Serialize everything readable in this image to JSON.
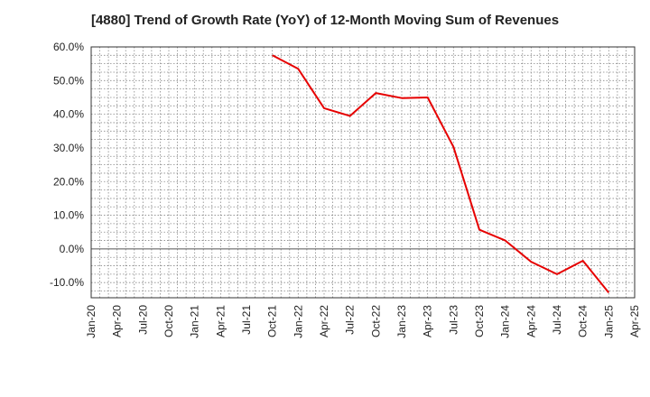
{
  "chart_data": {
    "type": "line",
    "title": "[4880]  Trend of Growth Rate (YoY) of 12-Month Moving Sum of Revenues",
    "xlabel": "",
    "ylabel": "",
    "x_ticks": [
      "Jan-20",
      "Apr-20",
      "Jul-20",
      "Oct-20",
      "Jan-21",
      "Apr-21",
      "Jul-21",
      "Oct-21",
      "Jan-22",
      "Apr-22",
      "Jul-22",
      "Oct-22",
      "Jan-23",
      "Apr-23",
      "Jul-23",
      "Oct-23",
      "Jan-24",
      "Apr-24",
      "Jul-24",
      "Oct-24",
      "Jan-25",
      "Apr-25"
    ],
    "y_ticks": [
      "60.0%",
      "50.0%",
      "40.0%",
      "30.0%",
      "20.0%",
      "10.0%",
      "0.0%",
      "-10.0%"
    ],
    "y_tick_values": [
      60,
      50,
      40,
      30,
      20,
      10,
      0,
      -10
    ],
    "ylim": [
      -14.5,
      60
    ],
    "grid": true,
    "line_color": "#e60000",
    "series": [
      {
        "x": [
          "Oct-21",
          "Jan-22",
          "Apr-22",
          "Jul-22",
          "Oct-22",
          "Jan-23",
          "Apr-23",
          "Jul-23",
          "Oct-23",
          "Jan-24",
          "Apr-24",
          "Jul-24",
          "Oct-24",
          "Jan-25"
        ],
        "values": [
          57.5,
          53.5,
          41.8,
          39.5,
          46.3,
          44.8,
          45.0,
          30.3,
          5.7,
          2.5,
          -3.8,
          -7.5,
          -3.5,
          -13.0
        ]
      }
    ]
  }
}
